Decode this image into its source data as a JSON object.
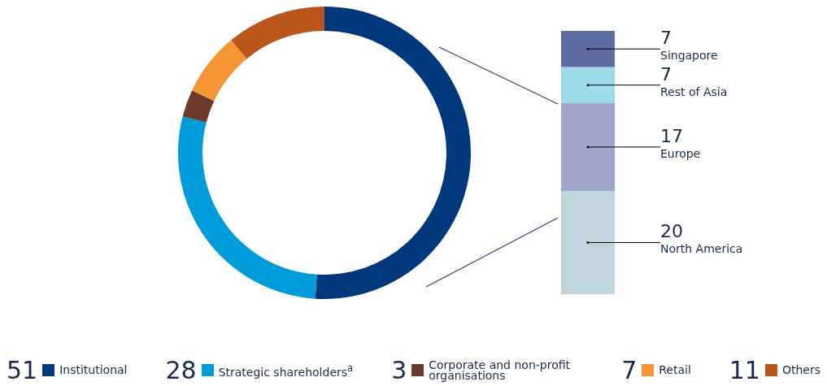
{
  "chart_data": [
    {
      "type": "donut",
      "categories": [
        "Institutional",
        "Strategic shareholders$^{a}$",
        "Corporate and non-profit organisations",
        "Retail",
        "Others"
      ],
      "values": [
        51,
        28,
        3,
        7,
        11
      ],
      "colors": [
        "#00387b",
        "#009cd9",
        "#6b3a2a",
        "#f59533",
        "#b8561b"
      ],
      "legend": "bottom",
      "data_labels": true
    },
    {
      "type": "bar",
      "stacked": true,
      "categories": [
        null
      ],
      "series": [
        {
          "name": "North America",
          "color": "#c0d4dc",
          "values": [
            20
          ]
        },
        {
          "name": "Europe",
          "color": "#a0a6cb",
          "values": [
            17
          ]
        },
        {
          "name": "Rest of Asia",
          "color": "#9ddbea",
          "values": [
            7
          ]
        },
        {
          "name": "Singapore",
          "color": "#5e6ba3",
          "values": [
            7
          ]
        }
      ],
      "data_labels": true
    }
  ]
}
